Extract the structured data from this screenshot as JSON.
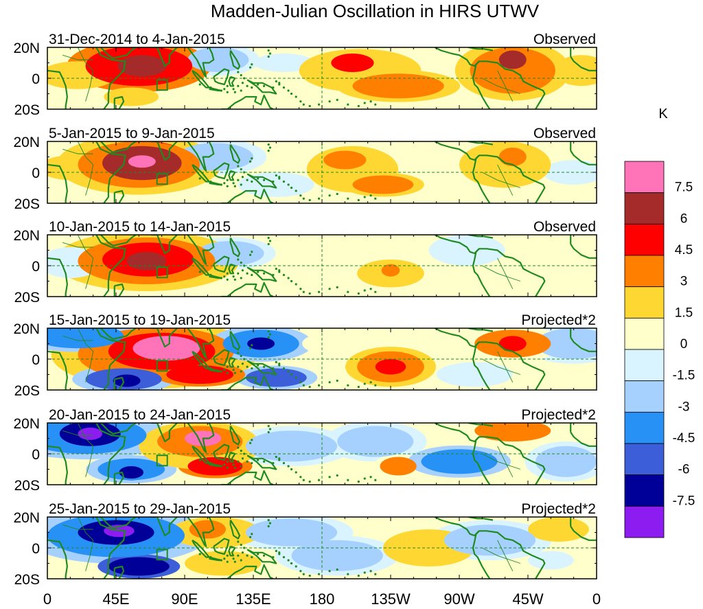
{
  "chart_data": {
    "type": "heatmap",
    "title": "Madden-Julian Oscillation in HIRS UTWV",
    "units_label": "K",
    "x_ticks": [
      "0",
      "45E",
      "90E",
      "135E",
      "180",
      "135W",
      "90W",
      "45W",
      "0"
    ],
    "y_ticks": [
      "20N",
      "0",
      "20S"
    ],
    "colorbar": {
      "labels": [
        "7.5",
        "6",
        "4.5",
        "3",
        "1.5",
        "0",
        "-1.5",
        "-3",
        "-4.5",
        "-6",
        "-7.5"
      ],
      "colors": [
        "#ff73b9",
        "#a52a2a",
        "#ff0000",
        "#ff7f00",
        "#ffd733",
        "#ffffcc",
        "#d9f3ff",
        "#a6d1ff",
        "#2891f5",
        "#3c5ed8",
        "#000098",
        "#8c1cf0"
      ]
    },
    "panels": [
      {
        "date_range": "31-Dec-2014 to 4-Jan-2015",
        "kind": "Observed",
        "blobs": [
          {
            "lon": 60,
            "lat": 8,
            "rx": 35,
            "ry": 13,
            "value": 5.5
          },
          {
            "lon": 62,
            "lat": 8,
            "rx": 16,
            "ry": 7,
            "value": 6.8
          },
          {
            "lon": 20,
            "lat": 2,
            "rx": 25,
            "ry": 9,
            "value": 2.2
          },
          {
            "lon": 55,
            "lat": -12,
            "rx": 18,
            "ry": 6,
            "value": 2.0
          },
          {
            "lon": 112,
            "lat": 12,
            "rx": 20,
            "ry": 8,
            "value": -2.2
          },
          {
            "lon": 155,
            "lat": 10,
            "rx": 20,
            "ry": 6,
            "value": -1.0
          },
          {
            "lon": 205,
            "lat": 5,
            "rx": 40,
            "ry": 14,
            "value": 2.2
          },
          {
            "lon": 200,
            "lat": 10,
            "rx": 14,
            "ry": 6,
            "value": 5.0
          },
          {
            "lon": 230,
            "lat": -5,
            "rx": 30,
            "ry": 8,
            "value": 3.4
          },
          {
            "lon": 305,
            "lat": 5,
            "rx": 28,
            "ry": 15,
            "value": 3.5
          },
          {
            "lon": 305,
            "lat": 12,
            "rx": 9,
            "ry": 6,
            "value": 6.3
          },
          {
            "lon": 350,
            "lat": 5,
            "rx": 18,
            "ry": 10,
            "value": 2.2
          }
        ]
      },
      {
        "date_range": "5-Jan-2015 to 9-Jan-2015",
        "kind": "Observed",
        "blobs": [
          {
            "lon": 60,
            "lat": 5,
            "rx": 40,
            "ry": 15,
            "value": 4.0
          },
          {
            "lon": 62,
            "lat": 6,
            "rx": 26,
            "ry": 11,
            "value": 6.4
          },
          {
            "lon": 62,
            "lat": 7,
            "rx": 9,
            "ry": 4,
            "value": 8.0
          },
          {
            "lon": 15,
            "lat": 3,
            "rx": 20,
            "ry": 8,
            "value": 2.0
          },
          {
            "lon": 110,
            "lat": 10,
            "rx": 25,
            "ry": 9,
            "value": -2.2
          },
          {
            "lon": 150,
            "lat": -8,
            "rx": 25,
            "ry": 8,
            "value": -1.0
          },
          {
            "lon": 200,
            "lat": 2,
            "rx": 30,
            "ry": 15,
            "value": 2.2
          },
          {
            "lon": 195,
            "lat": 8,
            "rx": 14,
            "ry": 6,
            "value": 3.4
          },
          {
            "lon": 220,
            "lat": -8,
            "rx": 20,
            "ry": 6,
            "value": 3.4
          },
          {
            "lon": 300,
            "lat": 5,
            "rx": 30,
            "ry": 15,
            "value": 2.5
          },
          {
            "lon": 305,
            "lat": 10,
            "rx": 9,
            "ry": 6,
            "value": 3.6
          },
          {
            "lon": 345,
            "lat": 0,
            "rx": 20,
            "ry": 8,
            "value": -1.0
          }
        ]
      },
      {
        "date_range": "10-Jan-2015 to 14-Jan-2015",
        "kind": "Observed",
        "blobs": [
          {
            "lon": 65,
            "lat": 3,
            "rx": 45,
            "ry": 15,
            "value": 3.6
          },
          {
            "lon": 66,
            "lat": 4,
            "rx": 30,
            "ry": 11,
            "value": 5.2
          },
          {
            "lon": 65,
            "lat": 3,
            "rx": 13,
            "ry": 6,
            "value": 6.6
          },
          {
            "lon": 15,
            "lat": 2,
            "rx": 20,
            "ry": 10,
            "value": -1.0
          },
          {
            "lon": 120,
            "lat": 8,
            "rx": 22,
            "ry": 8,
            "value": -2.2
          },
          {
            "lon": 190,
            "lat": 5,
            "rx": 30,
            "ry": 12,
            "value": 1.2
          },
          {
            "lon": 225,
            "lat": -5,
            "rx": 22,
            "ry": 9,
            "value": 2.2
          },
          {
            "lon": 225,
            "lat": -3,
            "rx": 6,
            "ry": 4,
            "value": 3.5
          },
          {
            "lon": 275,
            "lat": 10,
            "rx": 25,
            "ry": 10,
            "value": -1.0
          },
          {
            "lon": 340,
            "lat": -5,
            "rx": 20,
            "ry": 8,
            "value": 1.2
          }
        ]
      },
      {
        "date_range": "15-Jan-2015 to 19-Jan-2015",
        "kind": "Projected*2",
        "blobs": [
          {
            "lon": 70,
            "lat": 3,
            "rx": 50,
            "ry": 17,
            "value": 3.6
          },
          {
            "lon": 75,
            "lat": 5,
            "rx": 35,
            "ry": 12,
            "value": 5.2
          },
          {
            "lon": 78,
            "lat": 7,
            "rx": 22,
            "ry": 8,
            "value": 7.9
          },
          {
            "lon": 100,
            "lat": -10,
            "rx": 22,
            "ry": 6,
            "value": 5.2
          },
          {
            "lon": 20,
            "lat": 15,
            "rx": 30,
            "ry": 8,
            "value": -3.6
          },
          {
            "lon": 50,
            "lat": -13,
            "rx": 25,
            "ry": 7,
            "value": -4.6
          },
          {
            "lon": 52,
            "lat": -14,
            "rx": 9,
            "ry": 4,
            "value": -6.5
          },
          {
            "lon": 140,
            "lat": 10,
            "rx": 25,
            "ry": 9,
            "value": -4.0
          },
          {
            "lon": 140,
            "lat": 10,
            "rx": 9,
            "ry": 4,
            "value": -6.5
          },
          {
            "lon": 150,
            "lat": -12,
            "rx": 20,
            "ry": 6,
            "value": -4.6
          },
          {
            "lon": 185,
            "lat": 10,
            "rx": 18,
            "ry": 7,
            "value": 1.2
          },
          {
            "lon": 225,
            "lat": -5,
            "rx": 22,
            "ry": 10,
            "value": 3.6
          },
          {
            "lon": 225,
            "lat": -5,
            "rx": 10,
            "ry": 5,
            "value": 5.2
          },
          {
            "lon": 305,
            "lat": 10,
            "rx": 25,
            "ry": 9,
            "value": 3.0
          },
          {
            "lon": 305,
            "lat": 10,
            "rx": 9,
            "ry": 5,
            "value": 5.2
          },
          {
            "lon": 280,
            "lat": -10,
            "rx": 25,
            "ry": 8,
            "value": -1.5
          },
          {
            "lon": 345,
            "lat": 10,
            "rx": 25,
            "ry": 10,
            "value": -2.5
          }
        ]
      },
      {
        "date_range": "20-Jan-2015 to 24-Jan-2015",
        "kind": "Projected*2",
        "blobs": [
          {
            "lon": 25,
            "lat": 12,
            "rx": 40,
            "ry": 12,
            "value": -4.0
          },
          {
            "lon": 28,
            "lat": 13,
            "rx": 20,
            "ry": 8,
            "value": -6.5
          },
          {
            "lon": 28,
            "lat": 13,
            "rx": 8,
            "ry": 4,
            "value": -8.0
          },
          {
            "lon": 100,
            "lat": 5,
            "rx": 40,
            "ry": 15,
            "value": 2.2
          },
          {
            "lon": 100,
            "lat": 8,
            "rx": 28,
            "ry": 10,
            "value": 4.0
          },
          {
            "lon": 102,
            "lat": 10,
            "rx": 12,
            "ry": 5,
            "value": 8.0
          },
          {
            "lon": 110,
            "lat": -8,
            "rx": 18,
            "ry": 6,
            "value": 5.2
          },
          {
            "lon": 55,
            "lat": -10,
            "rx": 22,
            "ry": 7,
            "value": -4.0
          },
          {
            "lon": 55,
            "lat": -12,
            "rx": 8,
            "ry": 4,
            "value": -6.5
          },
          {
            "lon": 160,
            "lat": 5,
            "rx": 30,
            "ry": 10,
            "value": -2.5
          },
          {
            "lon": 215,
            "lat": 8,
            "rx": 25,
            "ry": 10,
            "value": -2.5
          },
          {
            "lon": 230,
            "lat": -8,
            "rx": 12,
            "ry": 6,
            "value": 3.0
          },
          {
            "lon": 270,
            "lat": -5,
            "rx": 25,
            "ry": 8,
            "value": -4.0
          },
          {
            "lon": 305,
            "lat": 15,
            "rx": 25,
            "ry": 7,
            "value": 3.0
          },
          {
            "lon": 340,
            "lat": -5,
            "rx": 20,
            "ry": 10,
            "value": -2.5
          }
        ]
      },
      {
        "date_range": "25-Jan-2015 to 29-Jan-2015",
        "kind": "Projected*2",
        "blobs": [
          {
            "lon": 45,
            "lat": 8,
            "rx": 45,
            "ry": 14,
            "value": -3.6
          },
          {
            "lon": 45,
            "lat": 10,
            "rx": 25,
            "ry": 8,
            "value": -6.5
          },
          {
            "lon": 47,
            "lat": 11,
            "rx": 10,
            "ry": 4,
            "value": -8.0
          },
          {
            "lon": 60,
            "lat": -12,
            "rx": 20,
            "ry": 6,
            "value": -6.5
          },
          {
            "lon": 110,
            "lat": 10,
            "rx": 30,
            "ry": 10,
            "value": 2.2
          },
          {
            "lon": 105,
            "lat": 12,
            "rx": 12,
            "ry": 6,
            "value": 3.4
          },
          {
            "lon": 115,
            "lat": -10,
            "rx": 25,
            "ry": 8,
            "value": 2.2
          },
          {
            "lon": 160,
            "lat": 10,
            "rx": 30,
            "ry": 9,
            "value": -2.5
          },
          {
            "lon": 190,
            "lat": -5,
            "rx": 30,
            "ry": 10,
            "value": -2.5
          },
          {
            "lon": 250,
            "lat": 0,
            "rx": 30,
            "ry": 12,
            "value": 2.2
          },
          {
            "lon": 290,
            "lat": 5,
            "rx": 30,
            "ry": 10,
            "value": -2.5
          },
          {
            "lon": 335,
            "lat": 12,
            "rx": 20,
            "ry": 8,
            "value": 2.2
          },
          {
            "lon": 330,
            "lat": -8,
            "rx": 15,
            "ry": 6,
            "value": -1.0
          }
        ]
      }
    ]
  }
}
